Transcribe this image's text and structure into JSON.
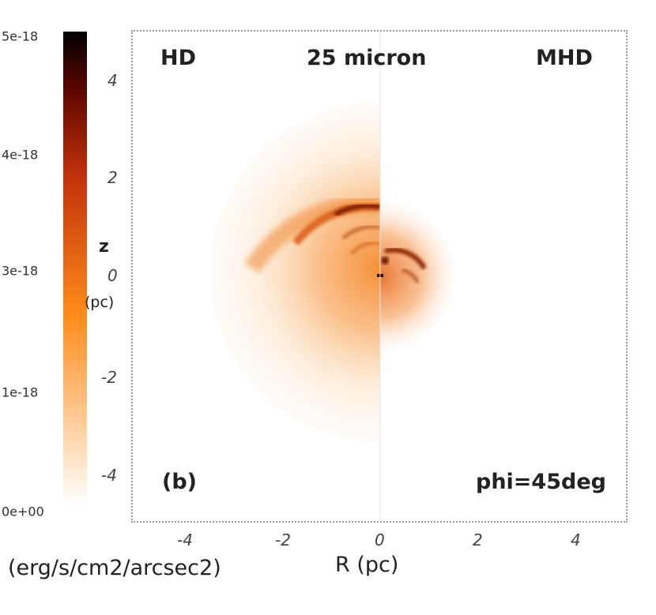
{
  "chart_data": {
    "type": "heatmap",
    "title": "25 micron",
    "left_label": "HD",
    "right_label": "MHD",
    "panel_label": "(b)",
    "angle_label": "phi=45deg",
    "xlabel": "R (pc)",
    "ylabel_top": "z",
    "ylabel_bottom": "(pc)",
    "xlim": [
      -5,
      5
    ],
    "ylim": [
      -5,
      5
    ],
    "x_ticks": [
      "-4",
      "-2",
      "0",
      "2",
      "4"
    ],
    "y_ticks": [
      "4",
      "2",
      "0",
      "-2",
      "-4"
    ],
    "colorbar": {
      "label": "(erg/s/cm2/arcsec2)",
      "range": [
        0,
        5e-18
      ],
      "ticks": [
        "5e-18",
        "4e-18",
        "3e-18",
        "1e-18",
        "0e+00"
      ],
      "colors": [
        "#ffffff",
        "#ff8c1a",
        "#c0300a",
        "#5a0600",
        "#000000"
      ]
    }
  }
}
